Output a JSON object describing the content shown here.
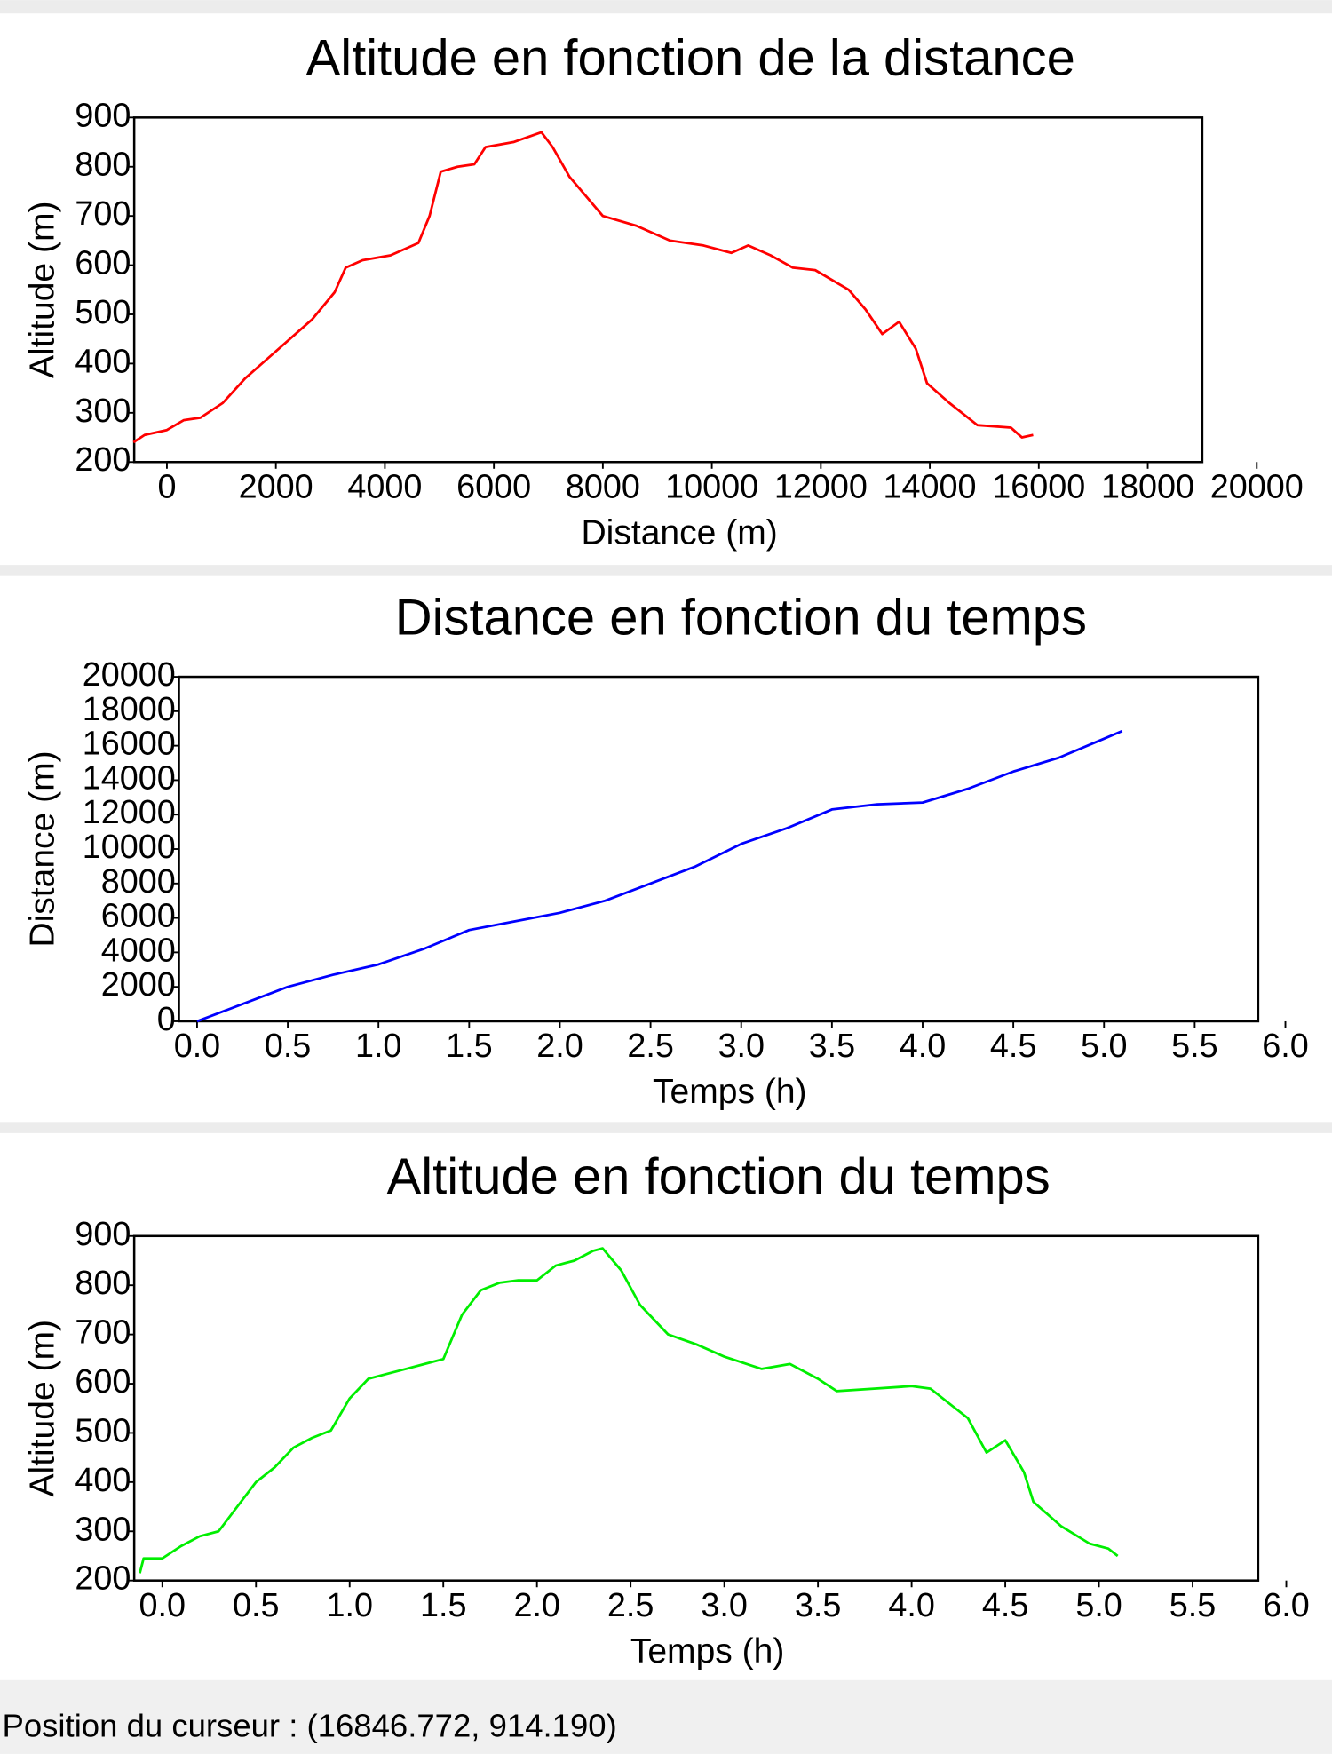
{
  "chart_data": [
    {
      "type": "line",
      "title": "Altitude en fonction de la distance",
      "xlabel": "Distance (m)",
      "ylabel": "Altitude (m)",
      "color": "#ff0000",
      "xlim": [
        -600,
        19000
      ],
      "ylim": [
        200,
        900
      ],
      "xticks": [
        0,
        2000,
        4000,
        6000,
        8000,
        10000,
        12000,
        14000,
        16000,
        18000,
        20000
      ],
      "yticks": [
        200,
        300,
        400,
        500,
        600,
        700,
        800,
        900
      ],
      "x": [
        -615,
        -410,
        0,
        308,
        615,
        1026,
        1436,
        1846,
        2256,
        2667,
        3077,
        3282,
        3590,
        4103,
        4615,
        4820,
        5026,
        5333,
        5641,
        5846,
        6359,
        6872,
        7077,
        7385,
        8000,
        8615,
        9231,
        9846,
        10359,
        10667,
        11077,
        11487,
        11897,
        12513,
        12821,
        13128,
        13436,
        13744,
        13949,
        14359,
        14872,
        15487,
        15692,
        15897
      ],
      "values": [
        240,
        255,
        265,
        285,
        290,
        320,
        370,
        410,
        450,
        490,
        545,
        595,
        610,
        620,
        645,
        700,
        790,
        800,
        805,
        840,
        850,
        870,
        840,
        780,
        700,
        680,
        650,
        640,
        625,
        640,
        620,
        595,
        590,
        550,
        510,
        460,
        485,
        430,
        360,
        320,
        275,
        270,
        250,
        255
      ]
    },
    {
      "type": "line",
      "title": "Distance en fonction du temps",
      "xlabel": "Temps (h)",
      "ylabel": "Distance (m)",
      "color": "#0000ff",
      "xlim": [
        -0.1,
        5.85
      ],
      "ylim": [
        0,
        20000
      ],
      "xticks": [
        {
          "value": 0,
          "label": "0.0"
        },
        0.5,
        {
          "value": 1,
          "label": "1.0"
        },
        1.5,
        {
          "value": 2,
          "label": "2.0"
        },
        2.5,
        {
          "value": 3,
          "label": "3.0"
        },
        3.5,
        {
          "value": 4,
          "label": "4.0"
        },
        4.5,
        {
          "value": 5,
          "label": "5.0"
        },
        5.5,
        {
          "value": 6,
          "label": "6.0"
        }
      ],
      "yticks": [
        0,
        2000,
        4000,
        6000,
        8000,
        10000,
        12000,
        14000,
        16000,
        18000,
        20000
      ],
      "x": [
        0,
        0.25,
        0.5,
        0.75,
        1.0,
        1.25,
        1.5,
        1.75,
        2.0,
        2.25,
        2.5,
        2.75,
        3.0,
        3.25,
        3.5,
        3.75,
        4.0,
        4.25,
        4.5,
        4.75,
        5.0,
        5.1
      ],
      "values": [
        0,
        1000,
        2000,
        2700,
        3300,
        4200,
        5300,
        5800,
        6300,
        7000,
        8000,
        9000,
        10300,
        11200,
        12300,
        12600,
        12700,
        13500,
        14500,
        15300,
        16400,
        16850
      ]
    },
    {
      "type": "line",
      "title": "Altitude en fonction du temps",
      "xlabel": "Temps (h)",
      "ylabel": "Altitude (m)",
      "color": "#00ee00",
      "xlim": [
        -0.15,
        5.85
      ],
      "ylim": [
        200,
        900
      ],
      "xticks": [
        {
          "value": 0,
          "label": "0.0"
        },
        0.5,
        {
          "value": 1,
          "label": "1.0"
        },
        1.5,
        {
          "value": 2,
          "label": "2.0"
        },
        2.5,
        {
          "value": 3,
          "label": "3.0"
        },
        3.5,
        {
          "value": 4,
          "label": "4.0"
        },
        4.5,
        {
          "value": 5,
          "label": "5.0"
        },
        5.5,
        {
          "value": 6,
          "label": "6.0"
        }
      ],
      "yticks": [
        200,
        300,
        400,
        500,
        600,
        700,
        800,
        900
      ],
      "x": [
        -0.12,
        -0.1,
        0.0,
        0.1,
        0.2,
        0.3,
        0.4,
        0.5,
        0.6,
        0.7,
        0.8,
        0.9,
        1.0,
        1.1,
        1.2,
        1.3,
        1.4,
        1.5,
        1.6,
        1.7,
        1.8,
        1.9,
        2.0,
        2.1,
        2.2,
        2.3,
        2.35,
        2.45,
        2.55,
        2.7,
        2.85,
        3.0,
        3.2,
        3.35,
        3.5,
        3.6,
        3.8,
        4.0,
        4.1,
        4.2,
        4.3,
        4.4,
        4.5,
        4.6,
        4.65,
        4.8,
        4.95,
        5.05,
        5.1
      ],
      "values": [
        215,
        245,
        245,
        270,
        290,
        300,
        350,
        400,
        430,
        470,
        490,
        505,
        570,
        610,
        620,
        630,
        640,
        650,
        740,
        790,
        805,
        810,
        810,
        840,
        850,
        870,
        875,
        830,
        760,
        700,
        680,
        655,
        630,
        640,
        610,
        585,
        590,
        595,
        590,
        560,
        530,
        460,
        485,
        420,
        360,
        310,
        275,
        265,
        250
      ]
    }
  ],
  "status": "Position du curseur : (16846.772, 914.190)"
}
